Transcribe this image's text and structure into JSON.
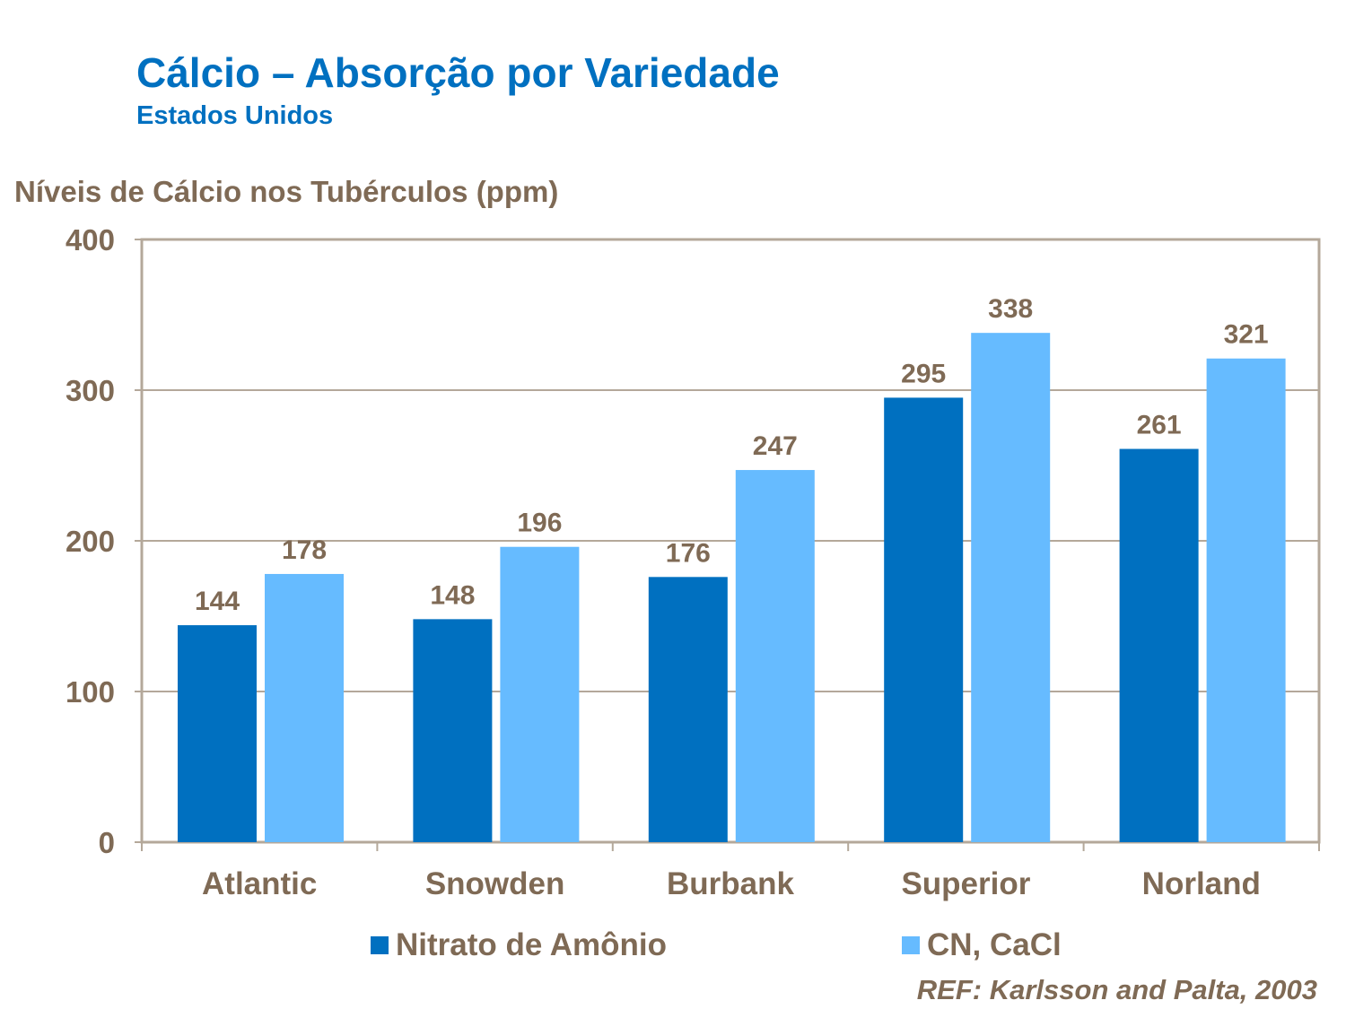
{
  "title": "Cálcio – Absorção por Variedade",
  "subtitle": "Estados Unidos",
  "reference": "REF: Karlsson and Palta, 2003",
  "chart_data": {
    "type": "bar",
    "ylabel": "Níveis de Cálcio nos Tubérculos (ppm)",
    "xlabel": "",
    "ylim": [
      0,
      400
    ],
    "yticks": [
      0,
      100,
      200,
      300,
      400
    ],
    "grid": true,
    "legend_position": "bottom",
    "categories": [
      "Atlantic",
      "Snowden",
      "Burbank",
      "Superior",
      "Norland"
    ],
    "series": [
      {
        "name": "Nitrato de Amônio",
        "color": "#0070C0",
        "values": [
          144,
          148,
          176,
          295,
          261
        ]
      },
      {
        "name": "CN, CaCl",
        "color": "#66BBFF",
        "values": [
          178,
          196,
          247,
          338,
          321
        ]
      }
    ]
  }
}
